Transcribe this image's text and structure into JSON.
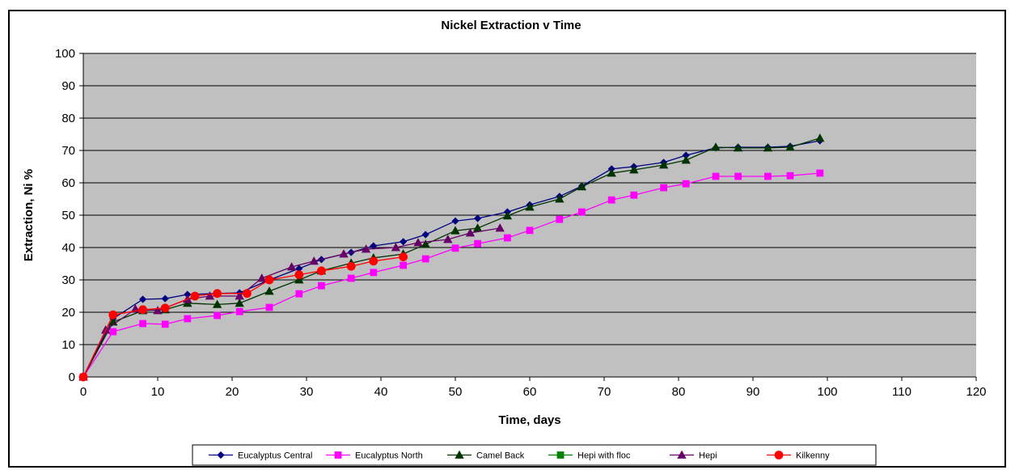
{
  "chart_data": {
    "type": "line",
    "title": "Nickel Extraction v Time",
    "xlabel": "Time, days",
    "ylabel": "Extraction, Ni %",
    "xlim": [
      0,
      120
    ],
    "ylim": [
      0,
      100
    ],
    "xticks": [
      0,
      10,
      20,
      30,
      40,
      50,
      60,
      70,
      80,
      90,
      100,
      110,
      120
    ],
    "yticks": [
      0,
      10,
      20,
      30,
      40,
      50,
      60,
      70,
      80,
      90,
      100
    ],
    "grid": "horizontal",
    "plot_background": "#c0c0c0",
    "legend_position": "bottom",
    "series": [
      {
        "name": "Eucalyptus Central",
        "color": "#000080",
        "marker": "diamond",
        "x": [
          0,
          4,
          8,
          11,
          14,
          18,
          21,
          25,
          29,
          32,
          36,
          39,
          43,
          46,
          50,
          53,
          57,
          60,
          64,
          67,
          71,
          74,
          78,
          81,
          85,
          88,
          92,
          95,
          99
        ],
        "y": [
          0,
          18,
          24,
          24.2,
          25.5,
          25.8,
          26,
          30,
          33.5,
          36.3,
          38.5,
          40.5,
          41.8,
          44,
          48.2,
          49,
          51,
          53.2,
          55.8,
          59,
          64.3,
          65,
          66.3,
          68.5,
          70.8,
          71,
          71,
          71.3,
          73
        ]
      },
      {
        "name": "Eucalyptus North",
        "color": "#ff00ff",
        "marker": "square",
        "x": [
          0,
          4,
          8,
          11,
          14,
          18,
          21,
          25,
          29,
          32,
          36,
          39,
          43,
          46,
          50,
          53,
          57,
          60,
          64,
          67,
          71,
          74,
          78,
          81,
          85,
          88,
          92,
          95,
          99
        ],
        "y": [
          0,
          14,
          16.5,
          16.3,
          18,
          19,
          20.2,
          21.5,
          25.7,
          28.2,
          30.5,
          32.3,
          34.5,
          36.5,
          39.8,
          41.2,
          43,
          45.3,
          48.7,
          51,
          54.7,
          56.2,
          58.5,
          59.7,
          62,
          62,
          62,
          62.2,
          63
        ]
      },
      {
        "name": "Camel Back",
        "color": "#003300",
        "marker": "triangle",
        "x": [
          0,
          4,
          8,
          11,
          14,
          18,
          21,
          25,
          29,
          32,
          36,
          39,
          43,
          46,
          50,
          53,
          57,
          60,
          64,
          67,
          71,
          74,
          78,
          81,
          85,
          88,
          92,
          95,
          99
        ],
        "y": [
          0,
          17,
          20.5,
          20.8,
          22.8,
          22.4,
          22.8,
          26.5,
          30,
          32.8,
          35.2,
          36.8,
          38,
          41,
          45.2,
          46,
          49.8,
          52.5,
          55,
          58.8,
          63,
          64,
          65.5,
          67,
          71,
          70.8,
          70.8,
          71,
          73.8
        ]
      },
      {
        "name": "Hepi with floc",
        "color": "#008000",
        "marker": "square",
        "x": [],
        "y": []
      },
      {
        "name": "Hepi",
        "color": "#660066",
        "marker": "triangle",
        "x": [
          0,
          3,
          7,
          10,
          14,
          17,
          21,
          24,
          28,
          31,
          35,
          38,
          42,
          45,
          49,
          52,
          56
        ],
        "y": [
          0,
          14.5,
          21,
          20.5,
          24,
          25,
          25,
          30.5,
          34,
          35.8,
          38,
          39.5,
          40,
          41.5,
          42.5,
          44.5,
          46
        ]
      },
      {
        "name": "Kilkenny",
        "color": "#ff0000",
        "marker": "circle",
        "x": [
          0,
          4,
          8,
          11,
          15,
          18,
          22,
          25,
          29,
          32,
          36,
          39,
          43
        ],
        "y": [
          0,
          19.2,
          20.8,
          21.3,
          25,
          25.8,
          25.8,
          30,
          31.6,
          32.8,
          34.2,
          35.8,
          37.1
        ]
      }
    ]
  }
}
